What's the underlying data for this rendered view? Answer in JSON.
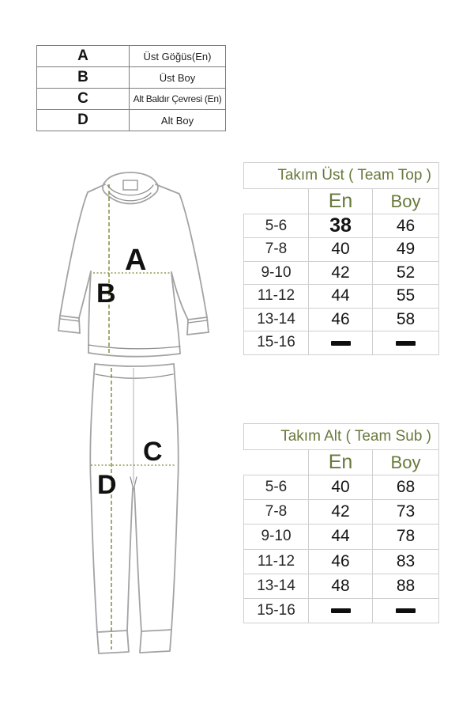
{
  "legend": {
    "rows": [
      {
        "letter": "A",
        "label": "Üst Göğüs(En)"
      },
      {
        "letter": "B",
        "label": "Üst Boy"
      },
      {
        "letter": "C",
        "label": "Alt Baldır Çevresi (En)"
      },
      {
        "letter": "D",
        "label": "Alt Boy"
      }
    ]
  },
  "size_tables": [
    {
      "title": "Takım Üst ( Team Top )",
      "columns": [
        "En",
        "Boy"
      ],
      "rows": [
        {
          "size": "5-6",
          "en": "38",
          "boy": "46",
          "emphasis": true
        },
        {
          "size": "7-8",
          "en": "40",
          "boy": "49"
        },
        {
          "size": "9-10",
          "en": "42",
          "boy": "52"
        },
        {
          "size": "11-12",
          "en": "44",
          "boy": "55"
        },
        {
          "size": "13-14",
          "en": "46",
          "boy": "58"
        },
        {
          "size": "15-16",
          "en": "—",
          "boy": "—"
        }
      ]
    },
    {
      "title": "Takım Alt ( Team Sub )",
      "columns": [
        "En",
        "Boy"
      ],
      "rows": [
        {
          "size": "5-6",
          "en": "40",
          "boy": "68"
        },
        {
          "size": "7-8",
          "en": "42",
          "boy": "73"
        },
        {
          "size": "9-10",
          "en": "44",
          "boy": "78"
        },
        {
          "size": "11-12",
          "en": "46",
          "boy": "83"
        },
        {
          "size": "13-14",
          "en": "48",
          "boy": "88"
        },
        {
          "size": "15-16",
          "en": "—",
          "boy": "—"
        }
      ]
    }
  ],
  "diagram_labels": {
    "shirt_width": "A",
    "shirt_length": "B",
    "pants_width": "C",
    "pants_length": "D"
  },
  "colors": {
    "accent_green": "#67793a",
    "dash_olive": "#7c8530",
    "table_border": "#cfcfcf",
    "legend_border": "#7d7d7d",
    "sketch_gray": "#a3a3a3",
    "text": "#1c1c1c"
  }
}
